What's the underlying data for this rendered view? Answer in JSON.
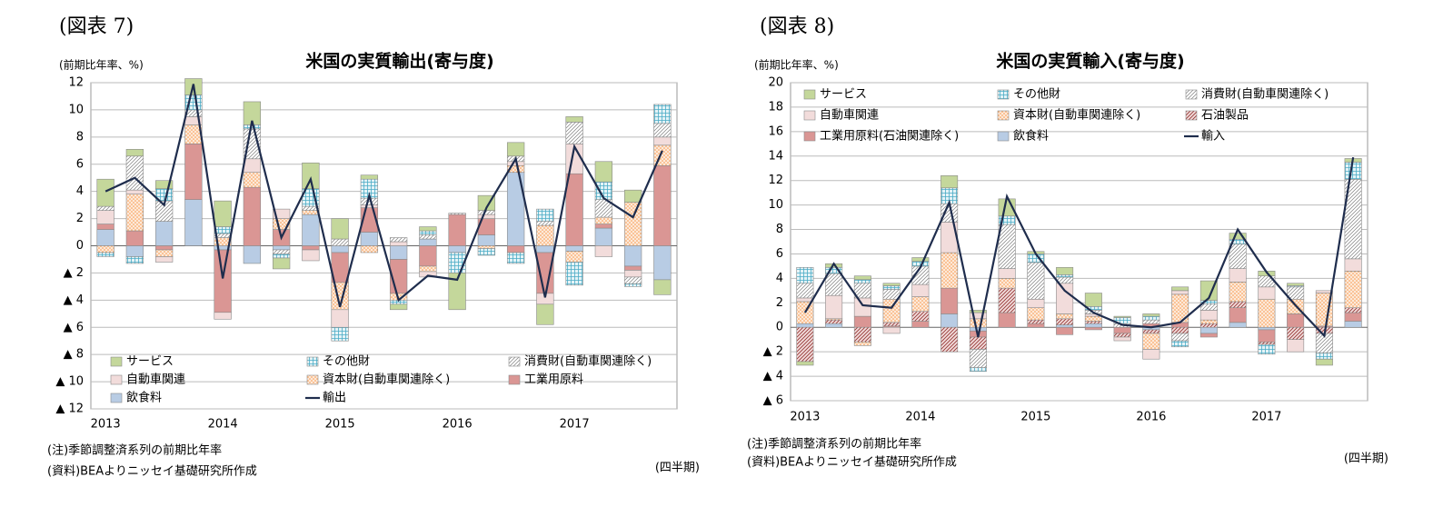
{
  "chart_data": [
    {
      "type": "bar",
      "figure_label": "(図表 7)",
      "title": "米国の実質輸出(寄与度)",
      "unit_label": "(前期比年率、%)",
      "notes": [
        "(注)季節調整済系列の前期比年率",
        "(資料)BEAよりニッセイ基礎研究所作成"
      ],
      "x_unit": "(四半期)",
      "categories": [
        "2013",
        null,
        null,
        null,
        "2014",
        null,
        null,
        null,
        "2015",
        null,
        null,
        null,
        "2016",
        null,
        null,
        null,
        "2017",
        null,
        null,
        null
      ],
      "ylim": [
        -12,
        12
      ],
      "yticks": [
        {
          "value": -12,
          "label": "▲ 12"
        },
        {
          "value": -10,
          "label": "▲ 10"
        },
        {
          "value": -8,
          "label": "▲ 8"
        },
        {
          "value": -6,
          "label": "▲ 6"
        },
        {
          "value": -4,
          "label": "▲ 4"
        },
        {
          "value": -2,
          "label": "▲ 2"
        },
        0,
        2,
        4,
        6,
        8,
        10,
        12
      ],
      "grid": true,
      "legend": "bottom",
      "series": [
        {
          "name": "サービス",
          "color": "#c4d79b",
          "pattern": "solid",
          "values": [
            2.0,
            0.5,
            0.6,
            1.2,
            1.9,
            1.7,
            -0.8,
            1.9,
            1.5,
            0.3,
            -0.4,
            0.3,
            -2.7,
            1.1,
            1.0,
            -1.5,
            0.4,
            1.5,
            0.9,
            -1.1
          ]
        },
        {
          "name": "その他財",
          "color": "#4bacc6",
          "pattern": "grid",
          "values": [
            -0.3,
            -0.5,
            0.9,
            1.1,
            0.5,
            0.3,
            -0.3,
            1.3,
            -1.0,
            1.4,
            -0.3,
            0.3,
            -1.5,
            -0.5,
            -0.8,
            0.9,
            -1.7,
            1.3,
            -0.2,
            1.4
          ]
        },
        {
          "name": "消費財(自動車関連除く)",
          "color": "#7f7f7f",
          "pattern": "diagonal",
          "values": [
            0.3,
            2.5,
            1.5,
            0.5,
            0.3,
            2.2,
            -0.3,
            0.3,
            0.5,
            0.5,
            0.3,
            0.3,
            0.1,
            0.3,
            0.4,
            0.3,
            1.6,
            1.3,
            -0.5,
            1.0
          ]
        },
        {
          "name": "自動車関連",
          "color": "#f2dcdb",
          "pattern": "solid",
          "values": [
            1.0,
            0.3,
            -0.4,
            0.6,
            -0.5,
            1.0,
            0.7,
            -0.8,
            -1.3,
            0.2,
            0.3,
            -0.4,
            0,
            0.3,
            0.3,
            -0.8,
            2.2,
            -0.8,
            -0.5,
            0.6
          ]
        },
        {
          "name": "資本財(自動車関連除く)",
          "color": "#f79646",
          "pattern": "dots",
          "values": [
            -0.5,
            2.7,
            -0.5,
            1.4,
            0.6,
            1.1,
            0.8,
            0.3,
            -2.0,
            -0.5,
            -0.5,
            -0.4,
            0,
            -0.2,
            0.5,
            1.5,
            -0.8,
            0.5,
            3.2,
            1.5
          ]
        },
        {
          "name": "工業用原料",
          "color": "#da9694",
          "pattern": "solid",
          "values": [
            0.4,
            1.1,
            -0.3,
            4.1,
            -4.6,
            4.3,
            1.2,
            -0.3,
            -2.2,
            1.8,
            -2.5,
            -1.5,
            2.3,
            1.2,
            -0.5,
            -3.0,
            5.3,
            0.3,
            -0.3,
            5.9
          ]
        },
        {
          "name": "飲食料",
          "color": "#b8cce4",
          "pattern": "solid",
          "values": [
            1.2,
            -0.8,
            1.8,
            3.4,
            -0.3,
            -1.3,
            -0.3,
            2.3,
            -0.5,
            1.0,
            -1.0,
            0.5,
            -0.5,
            0.8,
            5.4,
            -0.5,
            -0.4,
            1.3,
            -1.5,
            -2.5
          ]
        },
        {
          "name": "輸出",
          "color": "#1f2d4d",
          "kind": "line",
          "values": [
            4.0,
            5.0,
            3.0,
            11.9,
            -2.4,
            9.2,
            0.6,
            4.9,
            -4.5,
            3.7,
            -4.0,
            -2.2,
            -2.5,
            2.8,
            6.4,
            -3.8,
            7.3,
            3.5,
            2.1,
            7.0
          ]
        }
      ]
    },
    {
      "type": "bar",
      "figure_label": "(図表 8)",
      "title": "米国の実質輸入(寄与度)",
      "unit_label": "(前期比年率、%)",
      "notes": [
        "(注)季節調整済系列の前期比年率",
        "(資料)BEAよりニッセイ基礎研究所作成"
      ],
      "x_unit": "(四半期)",
      "categories": [
        "2013",
        null,
        null,
        null,
        "2014",
        null,
        null,
        null,
        "2015",
        null,
        null,
        null,
        "2016",
        null,
        null,
        null,
        "2017",
        null,
        null,
        null
      ],
      "ylim": [
        -6,
        20
      ],
      "yticks": [
        {
          "value": -6,
          "label": "▲ 6"
        },
        {
          "value": -4,
          "label": "▲ 4"
        },
        {
          "value": -2,
          "label": "▲ 2"
        },
        0,
        2,
        4,
        6,
        8,
        10,
        12,
        14,
        16,
        18,
        20
      ],
      "grid": true,
      "legend": "top",
      "series": [
        {
          "name": "サービス",
          "color": "#c4d79b",
          "pattern": "solid",
          "values": [
            -0.3,
            0.3,
            0.3,
            0.2,
            0.3,
            1.0,
            0.2,
            1.4,
            0.2,
            0.6,
            1.1,
            0.1,
            0.2,
            0.3,
            1.6,
            0.5,
            0.4,
            0.2,
            -0.5,
            0.3
          ]
        },
        {
          "name": "その他財",
          "color": "#4bacc6",
          "pattern": "grid",
          "values": [
            1.3,
            0.5,
            0.3,
            0.3,
            0.4,
            1.3,
            -0.3,
            0.7,
            0.7,
            0.2,
            0.3,
            0.5,
            0.3,
            -0.5,
            0.3,
            0.4,
            -0.8,
            0.1,
            -0.5,
            1.4
          ]
        },
        {
          "name": "消費財(自動車関連除く)",
          "color": "#7f7f7f",
          "pattern": "diagonal",
          "values": [
            1.2,
            1.8,
            1.2,
            0.8,
            1.5,
            1.5,
            -1.5,
            3.6,
            3.0,
            0.5,
            0.3,
            0.3,
            0.3,
            -0.6,
            0.5,
            2.0,
            0.9,
            1.0,
            -1.6,
            6.5
          ]
        },
        {
          "name": "自動車関連",
          "color": "#f2dcdb",
          "pattern": "solid",
          "values": [
            0.3,
            1.9,
            1.5,
            -0.5,
            1.0,
            2.5,
            0.5,
            0.8,
            0.7,
            2.5,
            0.2,
            -0.3,
            -0.8,
            0.3,
            0.8,
            1.1,
            1.0,
            -1.0,
            0.2,
            1.0
          ]
        },
        {
          "name": "資本財(自動車関連除く)",
          "color": "#f79646",
          "pattern": "dots",
          "values": [
            1.8,
            0.1,
            -0.3,
            1.9,
            1.2,
            2.9,
            0.7,
            0.8,
            1.0,
            0.4,
            0.4,
            0,
            -1.3,
            2.3,
            0.3,
            1.6,
            2.3,
            1.2,
            2.7,
            3.0
          ]
        },
        {
          "name": "石油製品",
          "color": "#953735",
          "pattern": "hatch",
          "values": [
            -2.8,
            0.3,
            -1.2,
            0.3,
            0.8,
            -2.0,
            -1.0,
            2.0,
            0.3,
            0.5,
            0.2,
            -0.3,
            -0.3,
            -0.5,
            0.3,
            0.5,
            -0.2,
            -1.0,
            -0.5,
            0.4
          ]
        },
        {
          "name": "工業用原料(石油関連除く)",
          "color": "#da9694",
          "pattern": "solid",
          "values": [
            0,
            0,
            0.9,
            0.1,
            0.5,
            2.1,
            -0.5,
            1.2,
            0.3,
            -0.6,
            -0.2,
            -0.5,
            0.3,
            0.4,
            -0.3,
            1.2,
            -1.0,
            1.1,
            0.1,
            0.7
          ]
        },
        {
          "name": "飲食料",
          "color": "#b8cce4",
          "pattern": "solid",
          "values": [
            0.3,
            0.3,
            0,
            0,
            0,
            1.1,
            -0.3,
            0,
            0,
            0.2,
            0.3,
            0,
            -0.2,
            0,
            -0.5,
            0.4,
            -0.2,
            0,
            0,
            0.5
          ]
        },
        {
          "name": "輸入",
          "color": "#1f2d4d",
          "kind": "line",
          "values": [
            1.2,
            5.2,
            1.8,
            1.6,
            4.9,
            10.2,
            -0.8,
            10.7,
            6.0,
            3.0,
            1.2,
            0.2,
            0,
            0.4,
            2.4,
            8.0,
            4.5,
            1.8,
            -0.7,
            13.9
          ]
        }
      ]
    }
  ]
}
